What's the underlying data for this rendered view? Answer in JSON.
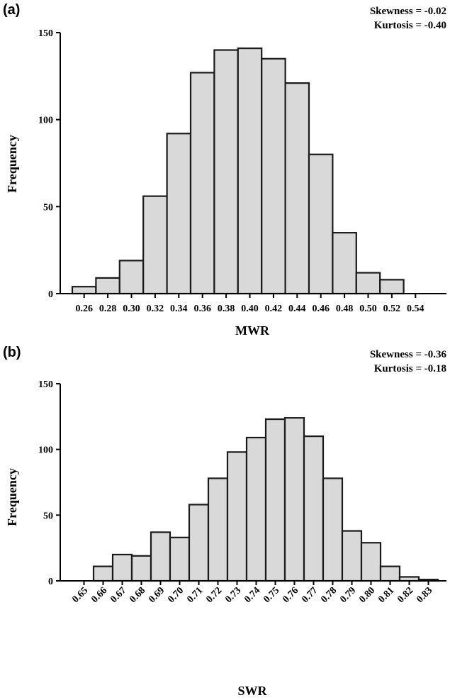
{
  "chart_data": [
    {
      "type": "bar",
      "panel_label": "(a)",
      "stats": [
        "Skewness = -0.02",
        "Kurtosis = -0.40"
      ],
      "xlabel": "MWR",
      "ylabel": "Frequency",
      "ylim": [
        0,
        150
      ],
      "yticks": [
        0,
        50,
        100,
        150
      ],
      "categories": [
        "0.26",
        "0.28",
        "0.30",
        "0.32",
        "0.34",
        "0.36",
        "0.38",
        "0.40",
        "0.42",
        "0.44",
        "0.46",
        "0.48",
        "0.50",
        "0.52",
        "0.54"
      ],
      "values": [
        4,
        9,
        19,
        56,
        92,
        127,
        140,
        141,
        135,
        121,
        80,
        35,
        12,
        8,
        0
      ],
      "grid": false,
      "x_tick_rotation": 0
    },
    {
      "type": "bar",
      "panel_label": "(b)",
      "stats": [
        "Skewness = -0.36",
        "Kurtosis = -0.18"
      ],
      "xlabel": "SWR",
      "ylabel": "Frequency",
      "ylim": [
        0,
        150
      ],
      "yticks": [
        0,
        50,
        100,
        150
      ],
      "categories": [
        "0.65",
        "0.66",
        "0.67",
        "0.68",
        "0.69",
        "0.70",
        "0.71",
        "0.72",
        "0.73",
        "0.74",
        "0.75",
        "0.76",
        "0.77",
        "0.78",
        "0.79",
        "0.80",
        "0.81",
        "0.82",
        "0.83"
      ],
      "values": [
        0,
        11,
        20,
        19,
        37,
        33,
        58,
        78,
        98,
        109,
        123,
        124,
        110,
        78,
        38,
        29,
        11,
        3,
        1
      ],
      "grid": false,
      "x_tick_rotation": -45
    }
  ]
}
